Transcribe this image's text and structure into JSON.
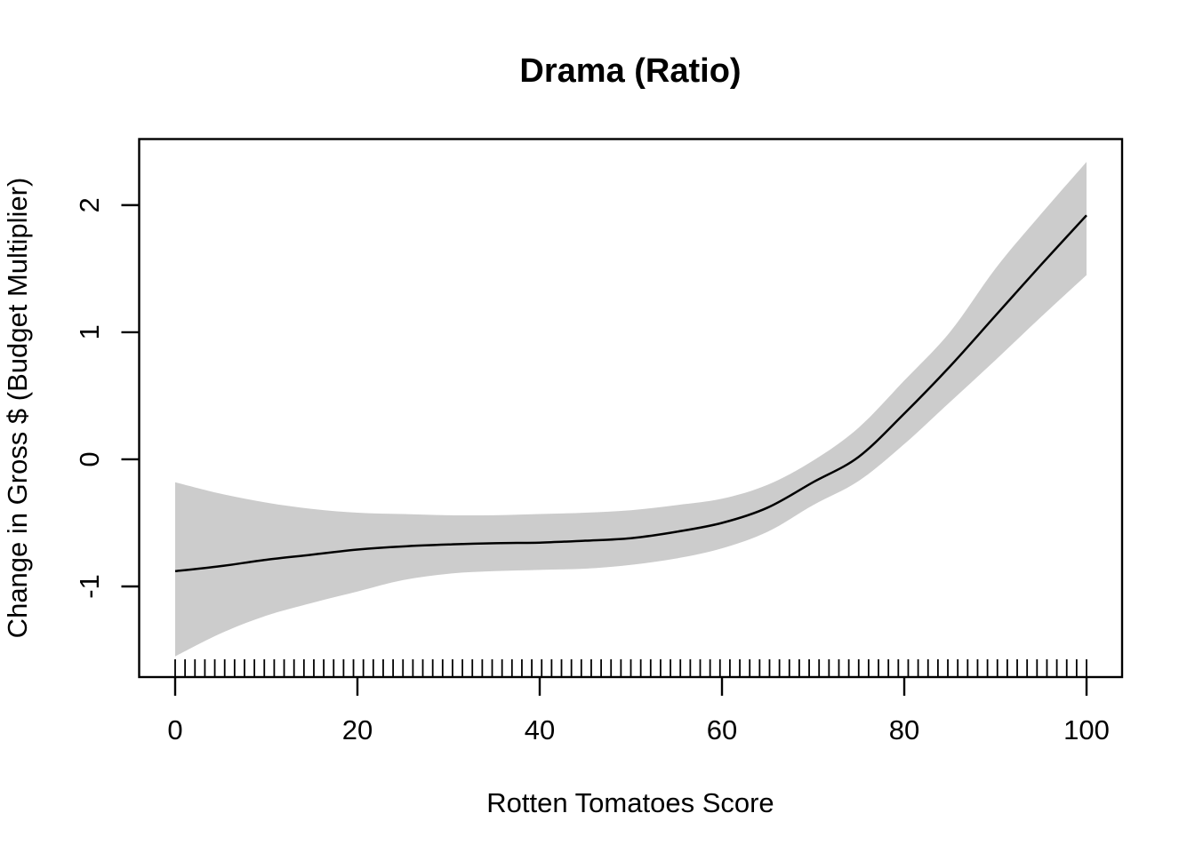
{
  "chart_data": {
    "type": "line",
    "title": "Drama (Ratio)",
    "xlabel": "Rotten Tomatoes Score",
    "ylabel": "Change in Gross $ (Budget Multiplier)",
    "x_ticks": [
      0,
      20,
      40,
      60,
      80,
      100
    ],
    "y_ticks": [
      -1,
      0,
      1,
      2
    ],
    "xlim": [
      -3.95,
      103.9
    ],
    "ylim": [
      -1.713,
      2.52
    ],
    "grid": false,
    "legend": false,
    "x": [
      0,
      5,
      10,
      15,
      20,
      25,
      30,
      35,
      40,
      45,
      50,
      55,
      60,
      65,
      70,
      75,
      80,
      85,
      90,
      95,
      100
    ],
    "series": [
      {
        "name": "smooth estimate",
        "values": [
          -0.88,
          -0.84,
          -0.79,
          -0.75,
          -0.71,
          -0.685,
          -0.67,
          -0.66,
          -0.655,
          -0.64,
          -0.62,
          -0.57,
          -0.5,
          -0.38,
          -0.18,
          0.02,
          0.36,
          0.73,
          1.13,
          1.53,
          1.92
        ]
      },
      {
        "name": "ci upper",
        "values": [
          -0.18,
          -0.27,
          -0.34,
          -0.39,
          -0.42,
          -0.43,
          -0.44,
          -0.44,
          -0.43,
          -0.42,
          -0.4,
          -0.36,
          -0.31,
          -0.2,
          -0.01,
          0.25,
          0.62,
          1.0,
          1.5,
          1.93,
          2.34
        ]
      },
      {
        "name": "ci lower",
        "values": [
          -1.55,
          -1.37,
          -1.23,
          -1.13,
          -1.04,
          -0.95,
          -0.9,
          -0.88,
          -0.87,
          -0.86,
          -0.83,
          -0.78,
          -0.7,
          -0.57,
          -0.36,
          -0.17,
          0.12,
          0.45,
          0.78,
          1.12,
          1.45
        ]
      }
    ],
    "rug": {
      "min": 0,
      "max": 100,
      "count": 93
    },
    "colors": {
      "band": "#cccccc",
      "line": "#000000",
      "axis": "#000000",
      "text": "#000000",
      "background": "#ffffff"
    }
  }
}
